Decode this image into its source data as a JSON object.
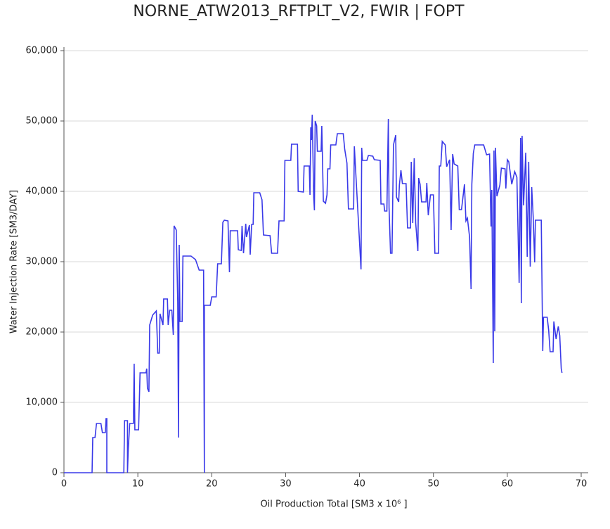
{
  "chart_data": {
    "type": "line",
    "title": "NORNE_ATW2013_RFTPLT_V2, FWIR | FOPT",
    "x_label": "Oil Production Total [SM3 x 10⁶ ]",
    "y_label": "Water Injection Rate [SM3/DAY]",
    "color": "#3a3ae8",
    "grid": true,
    "xlim": [
      0,
      70
    ],
    "xticks": [
      0,
      10,
      20,
      30,
      40,
      50,
      60,
      70
    ],
    "ylim": [
      0,
      60000
    ],
    "yticks": [
      {
        "value": 0,
        "label": "0"
      },
      {
        "value": 10000,
        "label": "10,000"
      },
      {
        "value": 20000,
        "label": "20,000"
      },
      {
        "value": 30000,
        "label": "30,000"
      },
      {
        "value": 40000,
        "label": "40,000"
      },
      {
        "value": 50000,
        "label": "50,000"
      },
      {
        "value": 60000,
        "label": "60,000"
      }
    ],
    "x": [
      0,
      3.8,
      3.9,
      4.2,
      4.4,
      5.0,
      5.2,
      5.6,
      5.7,
      5.8,
      5.8,
      8.1,
      8.2,
      8.6,
      8.6,
      8.7,
      8.9,
      9.4,
      9.5,
      9.6,
      10.1,
      10.3,
      11.1,
      11.2,
      11.3,
      11.5,
      11.6,
      12.0,
      12.5,
      12.7,
      12.9,
      13.0,
      13.4,
      13.5,
      14.0,
      14.1,
      14.3,
      14.6,
      14.8,
      14.9,
      15.2,
      15.4,
      15.5,
      15.6,
      15.7,
      16.0,
      16.1,
      17.2,
      17.8,
      18.3,
      18.9,
      19.0,
      19.0,
      19.8,
      20.0,
      20.6,
      20.8,
      21.3,
      21.5,
      21.7,
      22.2,
      22.4,
      22.5,
      23.5,
      23.6,
      24.0,
      24.1,
      24.3,
      24.6,
      24.7,
      25.1,
      25.2,
      25.4,
      25.6,
      25.7,
      26.5,
      26.8,
      27.0,
      27.9,
      28.1,
      28.9,
      29.1,
      29.8,
      29.9,
      30.7,
      30.8,
      31.6,
      31.7,
      32.4,
      32.5,
      33.2,
      33.3,
      33.4,
      33.5,
      33.6,
      33.8,
      33.9,
      34.0,
      34.2,
      34.3,
      34.8,
      34.9,
      35.1,
      35.4,
      35.6,
      35.7,
      36.0,
      36.1,
      36.8,
      37.0,
      37.8,
      38.0,
      38.3,
      38.5,
      39.2,
      39.3,
      40.2,
      40.3,
      40.4,
      41.0,
      41.2,
      41.8,
      42.0,
      42.8,
      42.9,
      43.3,
      43.4,
      43.7,
      43.9,
      44.0,
      44.2,
      44.4,
      44.6,
      44.9,
      45.0,
      45.3,
      45.4,
      45.6,
      45.8,
      46.3,
      46.5,
      46.9,
      47.0,
      47.2,
      47.4,
      47.6,
      47.9,
      48.0,
      48.2,
      48.4,
      49.0,
      49.1,
      49.3,
      49.6,
      50.0,
      50.2,
      50.7,
      50.8,
      51.0,
      51.2,
      51.6,
      51.8,
      52.2,
      52.4,
      52.6,
      52.8,
      53.3,
      53.5,
      53.8,
      54.2,
      54.4,
      54.6,
      54.9,
      55.1,
      55.2,
      55.4,
      55.6,
      56.8,
      57.2,
      57.6,
      57.8,
      57.9,
      58.1,
      58.2,
      58.3,
      58.4,
      58.6,
      59.0,
      59.2,
      59.7,
      59.8,
      60.0,
      60.2,
      60.6,
      61.0,
      61.3,
      61.6,
      61.8,
      61.9,
      62.0,
      62.2,
      62.5,
      62.7,
      62.9,
      63.1,
      63.3,
      63.5,
      63.7,
      63.8,
      64.6,
      64.8,
      64.9,
      65.4,
      65.6,
      65.8,
      66.2,
      66.3,
      66.6,
      66.9,
      67.1,
      67.3,
      67.4
    ],
    "values": [
      0,
      0,
      5000,
      5000,
      7000,
      7000,
      5700,
      5700,
      7700,
      7700,
      0,
      0,
      7400,
      7400,
      0,
      3300,
      7000,
      7000,
      15500,
      6100,
      6100,
      14200,
      14200,
      14800,
      12000,
      11500,
      21000,
      22400,
      23000,
      17000,
      17000,
      22600,
      21000,
      24700,
      24700,
      21000,
      23100,
      23100,
      19600,
      35100,
      34500,
      24300,
      5000,
      32400,
      21500,
      21500,
      30800,
      30800,
      30300,
      28800,
      28800,
      0,
      23800,
      23800,
      25000,
      25000,
      29700,
      29700,
      35600,
      35900,
      35800,
      28500,
      34400,
      34400,
      31700,
      31600,
      35100,
      31200,
      35400,
      33500,
      35200,
      31000,
      35300,
      35300,
      39800,
      39800,
      38800,
      33800,
      33700,
      31200,
      31200,
      35800,
      35800,
      44400,
      44400,
      46700,
      46700,
      40000,
      39900,
      43600,
      43600,
      39500,
      49100,
      47300,
      50900,
      39100,
      37300,
      50000,
      49300,
      45700,
      45700,
      49300,
      38600,
      38300,
      39500,
      43200,
      43200,
      46600,
      46600,
      48200,
      48200,
      46000,
      44000,
      37500,
      37500,
      46400,
      28900,
      46200,
      44400,
      44400,
      45100,
      45000,
      44500,
      44400,
      38200,
      38200,
      37200,
      37200,
      50300,
      37700,
      31200,
      31200,
      46600,
      48000,
      39200,
      38500,
      40900,
      43000,
      41100,
      41100,
      34800,
      34800,
      44200,
      35500,
      44700,
      35500,
      31500,
      41900,
      41000,
      38500,
      38500,
      41200,
      36600,
      39500,
      39500,
      31200,
      31200,
      43600,
      43600,
      47100,
      46600,
      43500,
      44500,
      34500,
      45300,
      43900,
      43600,
      37400,
      37400,
      41000,
      35800,
      36200,
      33500,
      26100,
      41000,
      45400,
      46600,
      46600,
      45200,
      45300,
      35000,
      40200,
      15600,
      45800,
      20100,
      46200,
      39300,
      40900,
      43300,
      43200,
      40400,
      44500,
      44200,
      41000,
      42800,
      42000,
      27000,
      47600,
      24100,
      47900,
      38000,
      45500,
      30700,
      44200,
      29300,
      40600,
      36400,
      29900,
      35900,
      35900,
      17300,
      22100,
      22100,
      20300,
      17200,
      17200,
      21500,
      19000,
      20800,
      19500,
      14800,
      14200
    ]
  }
}
